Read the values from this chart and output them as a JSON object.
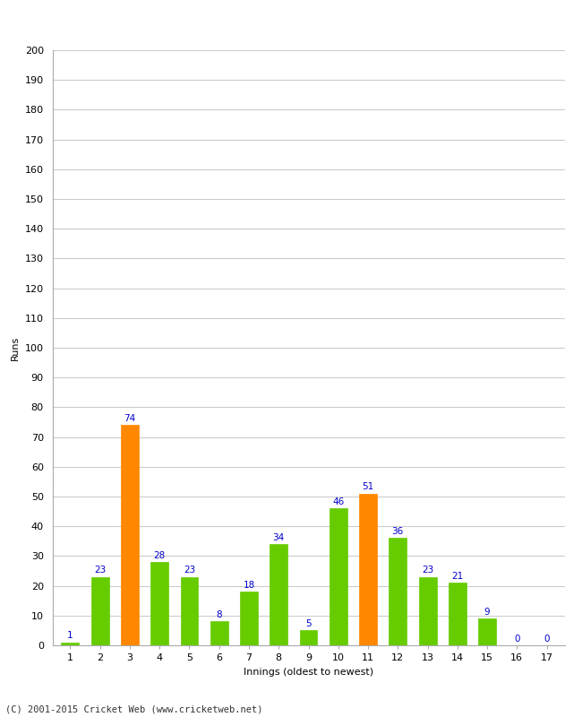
{
  "innings": [
    1,
    2,
    3,
    4,
    5,
    6,
    7,
    8,
    9,
    10,
    11,
    12,
    13,
    14,
    15,
    16,
    17
  ],
  "values": [
    1,
    23,
    74,
    28,
    23,
    8,
    18,
    34,
    5,
    46,
    51,
    36,
    23,
    21,
    9,
    0,
    0
  ],
  "colors": [
    "#66cc00",
    "#66cc00",
    "#ff8800",
    "#66cc00",
    "#66cc00",
    "#66cc00",
    "#66cc00",
    "#66cc00",
    "#66cc00",
    "#66cc00",
    "#ff8800",
    "#66cc00",
    "#66cc00",
    "#66cc00",
    "#66cc00",
    "#66cc00",
    "#66cc00"
  ],
  "xlabel": "Innings (oldest to newest)",
  "ylabel": "Runs",
  "ylim": [
    0,
    200
  ],
  "yticks": [
    0,
    10,
    20,
    30,
    40,
    50,
    60,
    70,
    80,
    90,
    100,
    110,
    120,
    130,
    140,
    150,
    160,
    170,
    180,
    190,
    200
  ],
  "label_color": "#0000cc",
  "label_fontsize": 7.5,
  "axis_fontsize": 8,
  "background_color": "#ffffff",
  "grid_color": "#cccccc",
  "footer": "(C) 2001-2015 Cricket Web (www.cricketweb.net)"
}
